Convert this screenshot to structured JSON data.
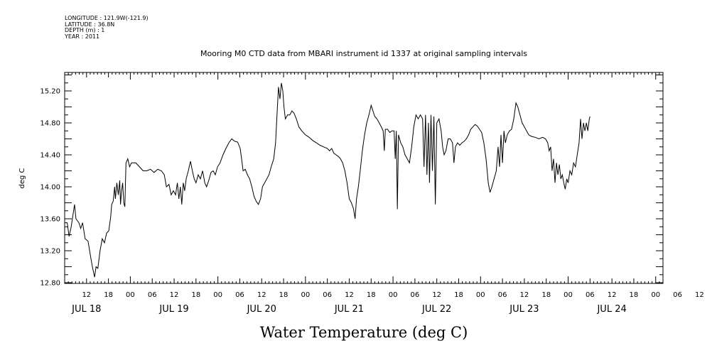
{
  "meta": {
    "longitude": "LONGITUDE : 121.9W(-121.9)",
    "latitude": "LATITUDE : 36.8N",
    "depth": "DEPTH (m) : 1",
    "year": "YEAR : 2011"
  },
  "chart_data": {
    "type": "line",
    "title": "Mooring M0 CTD data from MBARI instrument id 1337 at original sampling intervals",
    "ylabel": "deg C",
    "xlabel": "Water Temperature (deg C)",
    "ylim": [
      12.8,
      15.5
    ],
    "y_ticks": [
      "12.80",
      "13.20",
      "13.60",
      "14.00",
      "14.40",
      "14.80",
      "15.20"
    ],
    "x_range_hours": [
      6,
      170
    ],
    "x_tick_labels": [
      "12",
      "18",
      "00",
      "06",
      "12",
      "18",
      "00",
      "06",
      "12",
      "18",
      "00",
      "06",
      "12",
      "18",
      "00",
      "06",
      "12",
      "18",
      "00",
      "06",
      "12",
      "18",
      "00",
      "06",
      "12",
      "18",
      "00",
      "06",
      "12",
      "18"
    ],
    "day_labels": [
      "JUL 18",
      "JUL 19",
      "JUL 20",
      "JUL 21",
      "JUL 22",
      "JUL 23",
      "JUL 24"
    ],
    "grid": false,
    "series": [
      {
        "color": "#000000",
        "points": [
          [
            6,
            13.55
          ],
          [
            6.7,
            13.55
          ],
          [
            7.2,
            13.38
          ],
          [
            7.8,
            13.5
          ],
          [
            8.7,
            13.78
          ],
          [
            9.1,
            13.6
          ],
          [
            9.9,
            13.55
          ],
          [
            10.4,
            13.48
          ],
          [
            10.9,
            13.55
          ],
          [
            11.6,
            13.35
          ],
          [
            12.4,
            13.32
          ],
          [
            13.2,
            13.1
          ],
          [
            13.6,
            13.0
          ],
          [
            14.2,
            12.87
          ],
          [
            14.6,
            13.0
          ],
          [
            15.1,
            12.98
          ],
          [
            15.7,
            13.2
          ],
          [
            16.3,
            13.35
          ],
          [
            16.9,
            13.3
          ],
          [
            17.5,
            13.42
          ],
          [
            18.1,
            13.45
          ],
          [
            18.6,
            13.62
          ],
          [
            18.9,
            13.78
          ],
          [
            19.3,
            13.82
          ],
          [
            19.7,
            14.0
          ],
          [
            19.9,
            13.85
          ],
          [
            20.3,
            14.05
          ],
          [
            20.7,
            13.9
          ],
          [
            21.1,
            14.08
          ],
          [
            21.3,
            13.78
          ],
          [
            21.6,
            13.95
          ],
          [
            21.9,
            14.05
          ],
          [
            22.2,
            13.8
          ],
          [
            22.5,
            13.75
          ],
          [
            22.8,
            14.3
          ],
          [
            23.3,
            14.35
          ],
          [
            23.8,
            14.25
          ],
          [
            24.3,
            14.3
          ],
          [
            25.5,
            14.3
          ],
          [
            26.5,
            14.25
          ],
          [
            27.5,
            14.2
          ],
          [
            28.5,
            14.2
          ],
          [
            29.5,
            14.22
          ],
          [
            30.5,
            14.18
          ],
          [
            31.5,
            14.22
          ],
          [
            32.5,
            14.2
          ],
          [
            33.3,
            14.15
          ],
          [
            33.9,
            14.0
          ],
          [
            34.6,
            14.03
          ],
          [
            35.2,
            13.9
          ],
          [
            35.8,
            13.95
          ],
          [
            36.4,
            13.9
          ],
          [
            36.9,
            14.05
          ],
          [
            37.3,
            13.85
          ],
          [
            37.7,
            14.0
          ],
          [
            38.1,
            13.78
          ],
          [
            38.5,
            14.05
          ],
          [
            38.9,
            13.95
          ],
          [
            39.3,
            14.1
          ],
          [
            39.9,
            14.2
          ],
          [
            40.5,
            14.32
          ],
          [
            41.0,
            14.2
          ],
          [
            41.5,
            14.1
          ],
          [
            42.0,
            14.05
          ],
          [
            42.6,
            14.15
          ],
          [
            43.2,
            14.1
          ],
          [
            43.8,
            14.2
          ],
          [
            44.4,
            14.05
          ],
          [
            44.9,
            14.0
          ],
          [
            45.5,
            14.08
          ],
          [
            46.1,
            14.18
          ],
          [
            46.7,
            14.2
          ],
          [
            47.3,
            14.15
          ],
          [
            47.9,
            14.25
          ],
          [
            48.6,
            14.3
          ],
          [
            49.4,
            14.4
          ],
          [
            50.2,
            14.48
          ],
          [
            51.0,
            14.55
          ],
          [
            51.8,
            14.6
          ],
          [
            52.6,
            14.57
          ],
          [
            53.4,
            14.56
          ],
          [
            54.1,
            14.48
          ],
          [
            54.5,
            14.35
          ],
          [
            54.9,
            14.2
          ],
          [
            55.5,
            14.22
          ],
          [
            56.1,
            14.15
          ],
          [
            56.7,
            14.1
          ],
          [
            57.3,
            14.0
          ],
          [
            57.9,
            13.88
          ],
          [
            58.5,
            13.82
          ],
          [
            59.1,
            13.78
          ],
          [
            59.7,
            13.85
          ],
          [
            60.2,
            14.0
          ],
          [
            60.8,
            14.05
          ],
          [
            61.4,
            14.1
          ],
          [
            62.0,
            14.15
          ],
          [
            62.6,
            14.25
          ],
          [
            63.3,
            14.35
          ],
          [
            63.8,
            14.55
          ],
          [
            64.2,
            14.9
          ],
          [
            64.6,
            15.25
          ],
          [
            65.0,
            15.1
          ],
          [
            65.4,
            15.3
          ],
          [
            65.8,
            15.2
          ],
          [
            66.1,
            15.0
          ],
          [
            66.5,
            14.85
          ],
          [
            67.1,
            14.9
          ],
          [
            67.7,
            14.9
          ],
          [
            68.3,
            14.95
          ],
          [
            68.9,
            14.92
          ],
          [
            69.5,
            14.85
          ],
          [
            70.2,
            14.75
          ],
          [
            71.0,
            14.7
          ],
          [
            72.0,
            14.65
          ],
          [
            73.0,
            14.62
          ],
          [
            74.0,
            14.58
          ],
          [
            75.0,
            14.55
          ],
          [
            76.0,
            14.52
          ],
          [
            77.0,
            14.5
          ],
          [
            78.0,
            14.48
          ],
          [
            78.6,
            14.45
          ],
          [
            79.2,
            14.48
          ],
          [
            79.8,
            14.42
          ],
          [
            80.4,
            14.4
          ],
          [
            81.0,
            14.38
          ],
          [
            81.6,
            14.35
          ],
          [
            82.2,
            14.3
          ],
          [
            82.8,
            14.2
          ],
          [
            83.4,
            14.05
          ],
          [
            84.0,
            13.85
          ],
          [
            84.6,
            13.8
          ],
          [
            85.2,
            13.72
          ],
          [
            85.6,
            13.6
          ],
          [
            86.0,
            13.85
          ],
          [
            86.5,
            14.0
          ],
          [
            87.0,
            14.2
          ],
          [
            87.6,
            14.45
          ],
          [
            88.2,
            14.65
          ],
          [
            88.8,
            14.8
          ],
          [
            89.4,
            14.9
          ],
          [
            90.0,
            15.02
          ],
          [
            90.5,
            14.95
          ],
          [
            91.0,
            14.88
          ],
          [
            91.6,
            14.85
          ],
          [
            92.2,
            14.8
          ],
          [
            92.8,
            14.75
          ],
          [
            93.3,
            14.7
          ],
          [
            93.6,
            14.45
          ],
          [
            93.9,
            14.72
          ],
          [
            94.5,
            14.72
          ],
          [
            95.1,
            14.68
          ],
          [
            95.7,
            14.7
          ],
          [
            96.3,
            14.7
          ],
          [
            96.6,
            14.35
          ],
          [
            96.9,
            14.7
          ],
          [
            97.2,
            13.72
          ],
          [
            97.5,
            14.65
          ],
          [
            98.1,
            14.55
          ],
          [
            98.7,
            14.5
          ],
          [
            99.3,
            14.4
          ],
          [
            99.9,
            14.35
          ],
          [
            100.5,
            14.3
          ],
          [
            101.1,
            14.5
          ],
          [
            101.7,
            14.75
          ],
          [
            102.3,
            14.9
          ],
          [
            102.9,
            14.85
          ],
          [
            103.5,
            14.9
          ],
          [
            104.1,
            14.85
          ],
          [
            104.5,
            14.25
          ],
          [
            104.9,
            14.9
          ],
          [
            105.3,
            14.15
          ],
          [
            105.7,
            14.8
          ],
          [
            106.0,
            14.05
          ],
          [
            106.4,
            14.9
          ],
          [
            106.8,
            14.2
          ],
          [
            107.2,
            14.88
          ],
          [
            107.6,
            13.78
          ],
          [
            108.0,
            14.8
          ],
          [
            108.6,
            14.85
          ],
          [
            109.2,
            14.7
          ],
          [
            109.6,
            14.5
          ],
          [
            110.0,
            14.4
          ],
          [
            110.5,
            14.45
          ],
          [
            111.1,
            14.6
          ],
          [
            111.7,
            14.6
          ],
          [
            112.3,
            14.55
          ],
          [
            112.7,
            14.3
          ],
          [
            113.1,
            14.5
          ],
          [
            113.7,
            14.55
          ],
          [
            114.3,
            14.52
          ],
          [
            114.9,
            14.55
          ],
          [
            115.5,
            14.57
          ],
          [
            116.1,
            14.6
          ],
          [
            116.7,
            14.65
          ],
          [
            117.3,
            14.72
          ],
          [
            117.9,
            14.75
          ],
          [
            118.5,
            14.78
          ],
          [
            119.1,
            14.76
          ],
          [
            119.7,
            14.72
          ],
          [
            120.3,
            14.68
          ],
          [
            120.9,
            14.55
          ],
          [
            121.5,
            14.35
          ],
          [
            122.1,
            14.05
          ],
          [
            122.6,
            13.93
          ],
          [
            123.1,
            14.0
          ],
          [
            123.7,
            14.1
          ],
          [
            124.3,
            14.2
          ],
          [
            124.8,
            14.5
          ],
          [
            125.2,
            14.25
          ],
          [
            125.6,
            14.65
          ],
          [
            126.0,
            14.3
          ],
          [
            126.4,
            14.7
          ],
          [
            126.8,
            14.55
          ],
          [
            127.3,
            14.65
          ],
          [
            127.9,
            14.7
          ],
          [
            128.5,
            14.72
          ],
          [
            129.1,
            14.85
          ],
          [
            129.7,
            15.05
          ],
          [
            130.2,
            15.0
          ],
          [
            130.8,
            14.9
          ],
          [
            131.4,
            14.8
          ],
          [
            132.0,
            14.75
          ],
          [
            132.6,
            14.7
          ],
          [
            133.2,
            14.65
          ],
          [
            134.0,
            14.63
          ],
          [
            135.0,
            14.62
          ],
          [
            136.0,
            14.6
          ],
          [
            137.0,
            14.62
          ],
          [
            137.8,
            14.6
          ],
          [
            138.4,
            14.55
          ],
          [
            138.8,
            14.45
          ],
          [
            139.2,
            14.5
          ],
          [
            139.6,
            14.2
          ],
          [
            140.0,
            14.35
          ],
          [
            140.4,
            14.05
          ],
          [
            140.8,
            14.3
          ],
          [
            141.2,
            14.15
          ],
          [
            141.6,
            14.28
          ],
          [
            142.0,
            14.1
          ],
          [
            142.4,
            14.15
          ],
          [
            142.8,
            14.05
          ],
          [
            143.2,
            13.97
          ],
          [
            143.6,
            14.1
          ],
          [
            144.0,
            14.05
          ],
          [
            144.5,
            14.2
          ],
          [
            145.0,
            14.15
          ],
          [
            145.5,
            14.3
          ],
          [
            146.0,
            14.25
          ],
          [
            146.5,
            14.4
          ],
          [
            147.0,
            14.55
          ],
          [
            147.4,
            14.85
          ],
          [
            147.8,
            14.6
          ],
          [
            148.2,
            14.8
          ],
          [
            148.6,
            14.7
          ],
          [
            149.0,
            14.8
          ],
          [
            149.4,
            14.7
          ],
          [
            149.8,
            14.85
          ],
          [
            150.0,
            14.88
          ]
        ]
      }
    ]
  }
}
